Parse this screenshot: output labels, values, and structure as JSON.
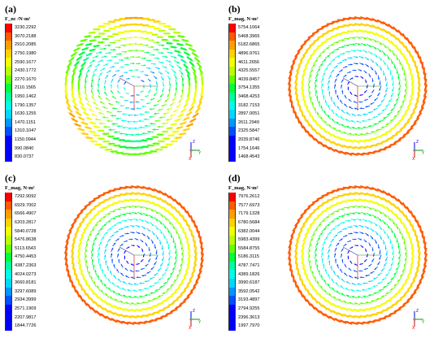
{
  "colors": [
    "#ff0000",
    "#ff5a00",
    "#ff9e00",
    "#ffd200",
    "#f2ff00",
    "#b8ff00",
    "#63ff00",
    "#00ff3c",
    "#00ff9c",
    "#00ffe6",
    "#00d6ff",
    "#0096ff",
    "#0050ff",
    "#0000ff"
  ],
  "triad": {
    "z": "Z",
    "y": "Y",
    "x": "X"
  },
  "panels": [
    {
      "label": "(a)",
      "title": "F_nc /N·m²",
      "values": [
        "3230.2292",
        "3070.2188",
        "2910.2085",
        "2750.1980",
        "2590.1677",
        "2430.1772",
        "2270.1670",
        "2110.1565",
        "1950.1462",
        "1790.1357",
        "1630.1255",
        "1470.1151",
        "1310.1047",
        "1150.0944",
        "990.0840",
        "830.0737"
      ]
    },
    {
      "label": "(b)",
      "title": "F_mag, N·m²",
      "values": [
        "5754.1064",
        "5468.3965",
        "5182.6865",
        "4896.9761",
        "4611.2656",
        "4325.5557",
        "4039.8457",
        "3754.1355",
        "3468.4253",
        "3182.7153",
        "2897.0051",
        "2611.2949",
        "2325.5847",
        "2039.8746",
        "1754.1646",
        "1468.4543"
      ]
    },
    {
      "label": "(c)",
      "title": "F_mag, N·m²",
      "values": [
        "7292.9092",
        "6929.7002",
        "6566.4907",
        "6203.2817",
        "5840.0728",
        "5476.8638",
        "5113.6543",
        "4750.4453",
        "4387.2363",
        "4024.0273",
        "3660.8181",
        "3297.6089",
        "2934.3999",
        "2571.1909",
        "2207.9817",
        "1844.7726"
      ]
    },
    {
      "label": "(d)",
      "title": "F_mag, N·m²",
      "values": [
        "7976.2612",
        "7577.6973",
        "7179.1328",
        "6780.5684",
        "6382.0044",
        "5983.4399",
        "5584.8755",
        "5186.3115",
        "4787.7471",
        "4389.1826",
        "3990.6187",
        "3592.0542",
        "3193.4897",
        "2794.9255",
        "2396.3613",
        "1997.7970"
      ]
    }
  ]
}
